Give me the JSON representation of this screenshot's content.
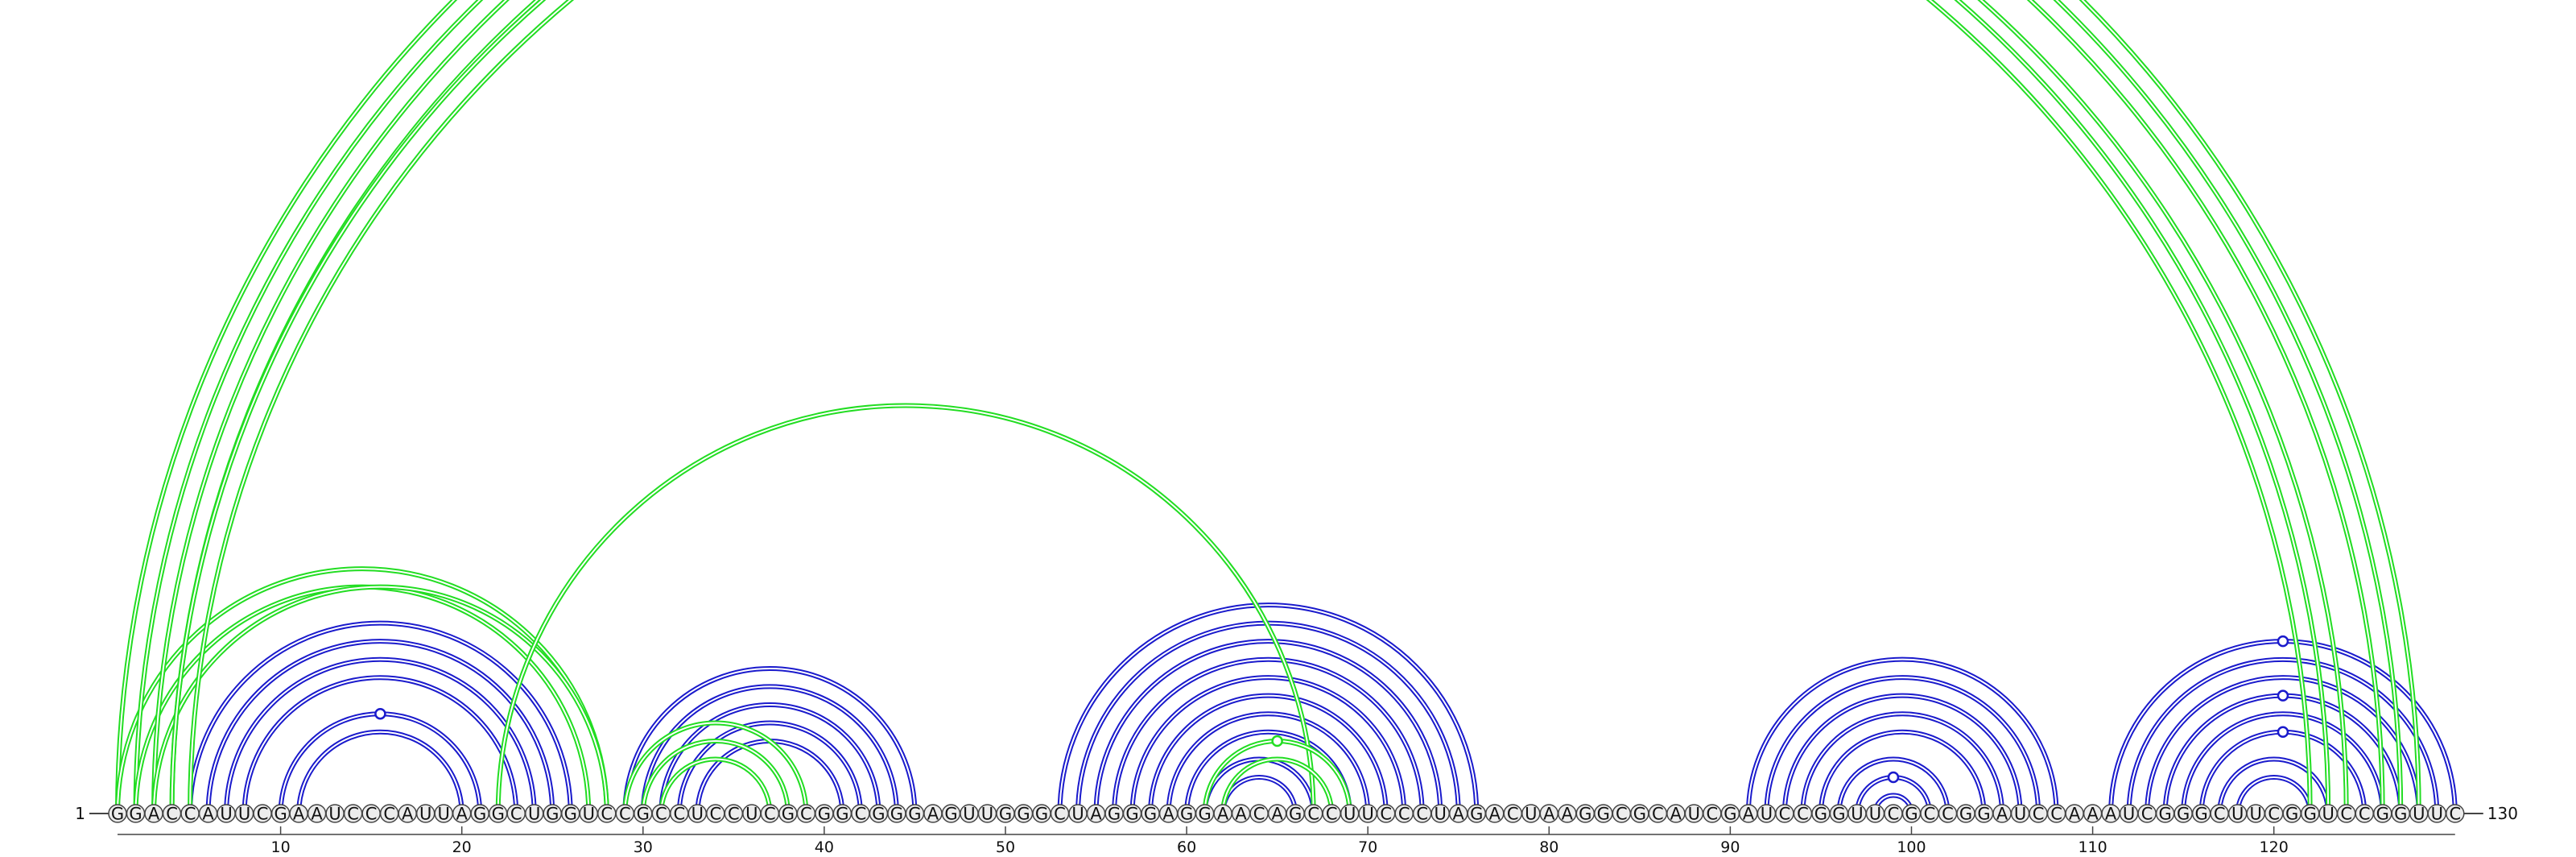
{
  "colors": {
    "blue": "#1a1acc",
    "green": "#22dd22",
    "nucleotide_fill": "#ececec",
    "nucleotide_stroke": "#444444",
    "text": "#111111"
  },
  "sequence": "GGACCAUUCGAAUCCCAUUAGGCUGGUCCGCCUCCUCGCGGCGGGAGUUGGGCUAGGGAGGAACAGCCUUCCCUAGACUAAGGCGCAUCGAUCCGGUUCGCCGGAUCCAAAUCGGGCUUCGGUCCGGUUC",
  "start_label": "1",
  "end_label": "130",
  "ticks": [
    {
      "pos": 10,
      "label": "10"
    },
    {
      "pos": 20,
      "label": "20"
    },
    {
      "pos": 30,
      "label": "30"
    },
    {
      "pos": 40,
      "label": "40"
    },
    {
      "pos": 50,
      "label": "50"
    },
    {
      "pos": 60,
      "label": "60"
    },
    {
      "pos": 70,
      "label": "70"
    },
    {
      "pos": 80,
      "label": "80"
    },
    {
      "pos": 90,
      "label": "90"
    },
    {
      "pos": 100,
      "label": "100"
    },
    {
      "pos": 110,
      "label": "110"
    },
    {
      "pos": 120,
      "label": "120"
    }
  ],
  "arcs": [
    {
      "i": 5,
      "j": 26,
      "color": "blue"
    },
    {
      "i": 6,
      "j": 25,
      "color": "blue"
    },
    {
      "i": 7,
      "j": 24,
      "color": "blue"
    },
    {
      "i": 8,
      "j": 23,
      "color": "blue"
    },
    {
      "i": 10,
      "j": 21,
      "color": "blue"
    },
    {
      "i": 11,
      "j": 20,
      "color": "blue"
    },
    {
      "i": 29,
      "j": 45,
      "color": "blue"
    },
    {
      "i": 30,
      "j": 44,
      "color": "blue"
    },
    {
      "i": 31,
      "j": 43,
      "color": "blue"
    },
    {
      "i": 32,
      "j": 42,
      "color": "blue"
    },
    {
      "i": 33,
      "j": 41,
      "color": "blue"
    },
    {
      "i": 53,
      "j": 76,
      "color": "blue"
    },
    {
      "i": 54,
      "j": 75,
      "color": "blue"
    },
    {
      "i": 55,
      "j": 74,
      "color": "blue"
    },
    {
      "i": 56,
      "j": 73,
      "color": "blue"
    },
    {
      "i": 57,
      "j": 72,
      "color": "blue"
    },
    {
      "i": 58,
      "j": 71,
      "color": "blue"
    },
    {
      "i": 59,
      "j": 70,
      "color": "blue"
    },
    {
      "i": 60,
      "j": 69,
      "color": "blue"
    },
    {
      "i": 61,
      "j": 67,
      "color": "blue"
    },
    {
      "i": 62,
      "j": 66,
      "color": "blue"
    },
    {
      "i": 91,
      "j": 108,
      "color": "blue"
    },
    {
      "i": 92,
      "j": 107,
      "color": "blue"
    },
    {
      "i": 93,
      "j": 106,
      "color": "blue"
    },
    {
      "i": 94,
      "j": 105,
      "color": "blue"
    },
    {
      "i": 95,
      "j": 104,
      "color": "blue"
    },
    {
      "i": 96,
      "j": 102,
      "color": "blue"
    },
    {
      "i": 97,
      "j": 101,
      "color": "blue"
    },
    {
      "i": 98,
      "j": 100,
      "color": "blue"
    },
    {
      "i": 111,
      "j": 130,
      "color": "blue"
    },
    {
      "i": 112,
      "j": 129,
      "color": "blue"
    },
    {
      "i": 113,
      "j": 128,
      "color": "blue"
    },
    {
      "i": 114,
      "j": 127,
      "color": "blue"
    },
    {
      "i": 115,
      "j": 126,
      "color": "blue"
    },
    {
      "i": 116,
      "j": 125,
      "color": "blue"
    },
    {
      "i": 117,
      "j": 123,
      "color": "blue"
    },
    {
      "i": 118,
      "j": 122,
      "color": "blue"
    },
    {
      "i": 1,
      "j": 128,
      "color": "green"
    },
    {
      "i": 1,
      "j": 28,
      "color": "green"
    },
    {
      "i": 2,
      "j": 127,
      "color": "green"
    },
    {
      "i": 2,
      "j": 27,
      "color": "green"
    },
    {
      "i": 3,
      "j": 126,
      "color": "green"
    },
    {
      "i": 3,
      "j": 28,
      "color": "green"
    },
    {
      "i": 4,
      "j": 124,
      "color": "green"
    },
    {
      "i": 4,
      "j": 123,
      "color": "green"
    },
    {
      "i": 5,
      "j": 122,
      "color": "green"
    },
    {
      "i": 22,
      "j": 67,
      "color": "green"
    },
    {
      "i": 29,
      "j": 39,
      "color": "green"
    },
    {
      "i": 30,
      "j": 38,
      "color": "green"
    },
    {
      "i": 31,
      "j": 37,
      "color": "green"
    },
    {
      "i": 61,
      "j": 69,
      "color": "green"
    },
    {
      "i": 62,
      "j": 68,
      "color": "green"
    }
  ],
  "markers": [
    {
      "i": 10,
      "j": 21,
      "color": "blue"
    },
    {
      "i": 111,
      "j": 130,
      "color": "blue"
    },
    {
      "i": 114,
      "j": 127,
      "color": "blue"
    },
    {
      "i": 116,
      "j": 125,
      "color": "blue"
    },
    {
      "i": 97,
      "j": 101,
      "color": "blue"
    },
    {
      "i": 1,
      "j": 130,
      "color": "green"
    },
    {
      "i": 61,
      "j": 69,
      "color": "green"
    }
  ]
}
